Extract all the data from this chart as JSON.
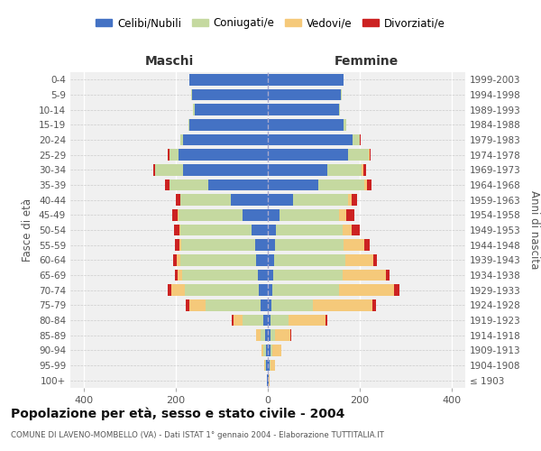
{
  "age_groups": [
    "100+",
    "95-99",
    "90-94",
    "85-89",
    "80-84",
    "75-79",
    "70-74",
    "65-69",
    "60-64",
    "55-59",
    "50-54",
    "45-49",
    "40-44",
    "35-39",
    "30-34",
    "25-29",
    "20-24",
    "15-19",
    "10-14",
    "5-9",
    "0-4"
  ],
  "birth_years": [
    "≤ 1903",
    "1904-1908",
    "1909-1913",
    "1914-1918",
    "1919-1923",
    "1924-1928",
    "1929-1933",
    "1934-1938",
    "1939-1943",
    "1944-1948",
    "1949-1953",
    "1954-1958",
    "1959-1963",
    "1964-1968",
    "1969-1973",
    "1974-1978",
    "1979-1983",
    "1984-1988",
    "1989-1993",
    "1994-1998",
    "1999-2003"
  ],
  "male_celibi": [
    2,
    3,
    4,
    5,
    10,
    15,
    20,
    22,
    25,
    28,
    35,
    55,
    80,
    130,
    185,
    195,
    185,
    170,
    160,
    165,
    170
  ],
  "male_coniugati": [
    0,
    2,
    5,
    10,
    45,
    120,
    160,
    165,
    165,
    160,
    155,
    140,
    110,
    85,
    60,
    20,
    5,
    3,
    2,
    1,
    0
  ],
  "male_vedovi": [
    0,
    2,
    5,
    10,
    20,
    35,
    30,
    10,
    8,
    5,
    3,
    2,
    1,
    0,
    0,
    0,
    0,
    0,
    0,
    0,
    0
  ],
  "male_divorziati": [
    0,
    0,
    0,
    0,
    3,
    8,
    8,
    6,
    8,
    10,
    12,
    12,
    10,
    8,
    5,
    2,
    0,
    0,
    0,
    0,
    0
  ],
  "female_celibi": [
    2,
    3,
    5,
    5,
    5,
    8,
    10,
    12,
    14,
    15,
    18,
    25,
    55,
    110,
    130,
    175,
    185,
    165,
    155,
    160,
    165
  ],
  "female_coniugati": [
    0,
    2,
    5,
    10,
    40,
    90,
    145,
    150,
    155,
    150,
    145,
    130,
    120,
    100,
    75,
    45,
    15,
    5,
    2,
    1,
    0
  ],
  "female_vedovi": [
    2,
    10,
    20,
    35,
    80,
    130,
    120,
    95,
    60,
    45,
    20,
    15,
    8,
    5,
    3,
    2,
    1,
    0,
    0,
    0,
    0
  ],
  "female_divorziati": [
    0,
    0,
    0,
    2,
    5,
    8,
    12,
    8,
    8,
    12,
    18,
    18,
    12,
    10,
    6,
    2,
    1,
    0,
    0,
    0,
    0
  ],
  "color_celibi": "#4472c4",
  "color_coniugati": "#c5d9a0",
  "color_vedovi": "#f5c97a",
  "color_divorziati": "#cc2222",
  "title": "Popolazione per età, sesso e stato civile - 2004",
  "subtitle": "COMUNE DI LAVENO-MOMBELLO (VA) - Dati ISTAT 1° gennaio 2004 - Elaborazione TUTTITALIA.IT",
  "xlabel_left": "Maschi",
  "xlabel_right": "Femmine",
  "ylabel_left": "Fasce di età",
  "ylabel_right": "Anni di nascita",
  "xlim": 430,
  "legend_labels": [
    "Celibi/Nubili",
    "Coniugati/e",
    "Vedovi/e",
    "Divorziati/e"
  ]
}
